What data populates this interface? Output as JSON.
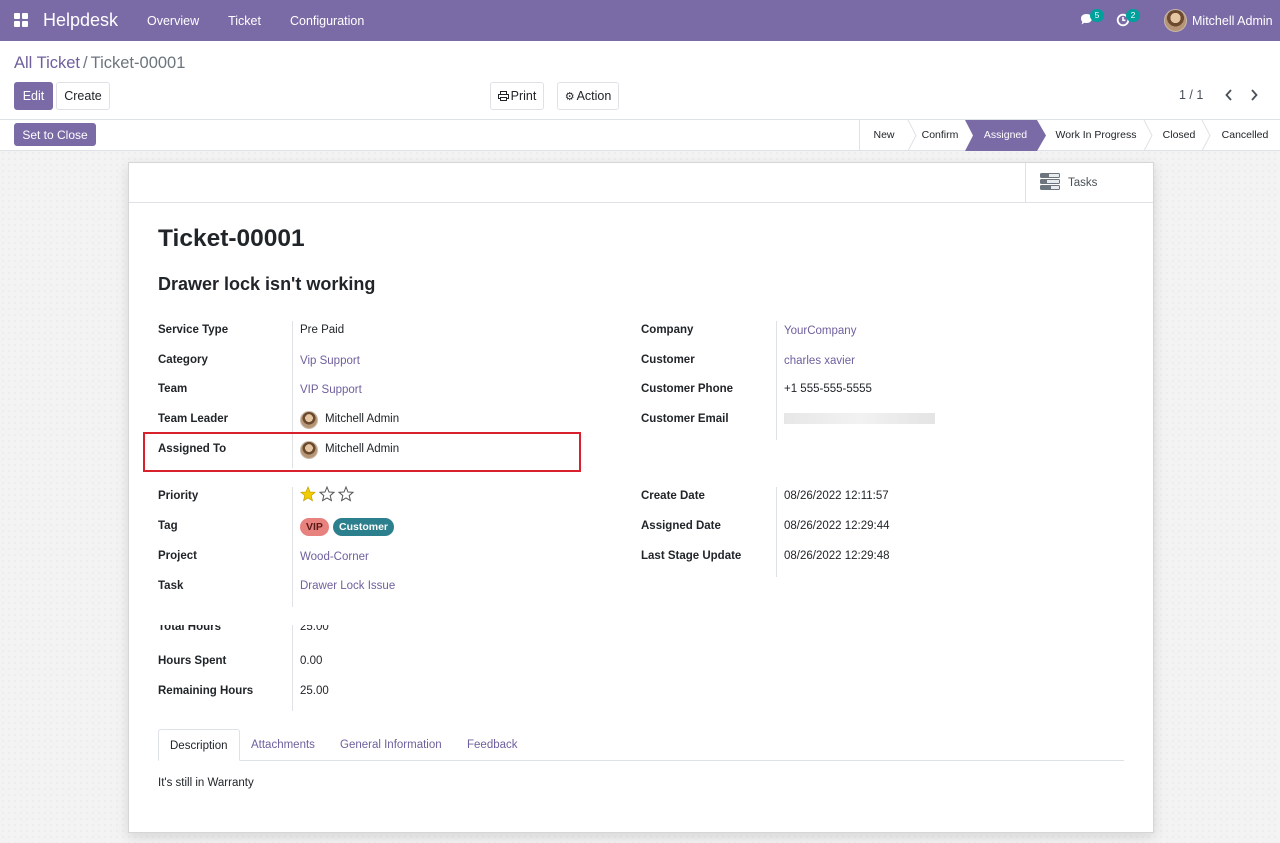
{
  "navbar": {
    "app_name": "Helpdesk",
    "menu": [
      "Overview",
      "Ticket",
      "Configuration"
    ],
    "messages_count": "5",
    "activities_count": "2",
    "user_name": "Mitchell Admin",
    "bg_color": "#7a6aa6"
  },
  "breadcrumb": {
    "parent": "All Ticket",
    "separator": "/",
    "current": "Ticket-00001"
  },
  "buttons": {
    "edit": "Edit",
    "create": "Create",
    "print": "Print",
    "action": "Action",
    "set_to_close": "Set to Close"
  },
  "pager": {
    "value": "1 / 1"
  },
  "stages": [
    {
      "label": "New",
      "active": false
    },
    {
      "label": "Confirm",
      "active": false
    },
    {
      "label": "Assigned",
      "active": true
    },
    {
      "label": "Work In Progress",
      "active": false
    },
    {
      "label": "Closed",
      "active": false
    },
    {
      "label": "Cancelled",
      "active": false
    }
  ],
  "smart_button": {
    "label": "Tasks",
    "icon": "tasks-icon"
  },
  "ticket": {
    "name": "Ticket-00001",
    "subject": "Drawer lock isn't working"
  },
  "fields_left": {
    "service_type": {
      "label": "Service Type",
      "value": "Pre Paid"
    },
    "category": {
      "label": "Category",
      "value": "Vip Support"
    },
    "team": {
      "label": "Team",
      "value": "VIP Support"
    },
    "team_leader": {
      "label": "Team Leader",
      "value": "Mitchell Admin"
    },
    "assigned_to": {
      "label": "Assigned To",
      "value": "Mitchell Admin"
    }
  },
  "fields_right": {
    "company": {
      "label": "Company",
      "value": "YourCompany"
    },
    "customer": {
      "label": "Customer",
      "value": "charles xavier"
    },
    "customer_phone": {
      "label": "Customer Phone",
      "value": "+1 555-555-5555"
    },
    "customer_email": {
      "label": "Customer Email",
      "value": ""
    }
  },
  "fields_mid_left": {
    "priority": {
      "label": "Priority",
      "stars_filled": 1,
      "stars_total": 3
    },
    "tag": {
      "label": "Tag",
      "tags": [
        {
          "name": "VIP",
          "color": "#e8827e"
        },
        {
          "name": "Customer",
          "color": "#2c7f8c"
        }
      ]
    },
    "project": {
      "label": "Project",
      "value": "Wood-Corner"
    },
    "task": {
      "label": "Task",
      "value": "Drawer Lock Issue"
    }
  },
  "fields_mid_right": {
    "create_date": {
      "label": "Create Date",
      "value": "08/26/2022 12:11:57"
    },
    "assigned_date": {
      "label": "Assigned Date",
      "value": "08/26/2022 12:29:44"
    },
    "last_stage_update": {
      "label": "Last Stage Update",
      "value": "08/26/2022 12:29:48"
    }
  },
  "hours": {
    "total": {
      "label": "Total Hours",
      "value": "25.00"
    },
    "spent": {
      "label": "Hours Spent",
      "value": "0.00"
    },
    "remaining": {
      "label": "Remaining Hours",
      "value": "25.00"
    }
  },
  "tabs": [
    "Description",
    "Attachments",
    "General Information",
    "Feedback"
  ],
  "description": "It's still in Warranty"
}
